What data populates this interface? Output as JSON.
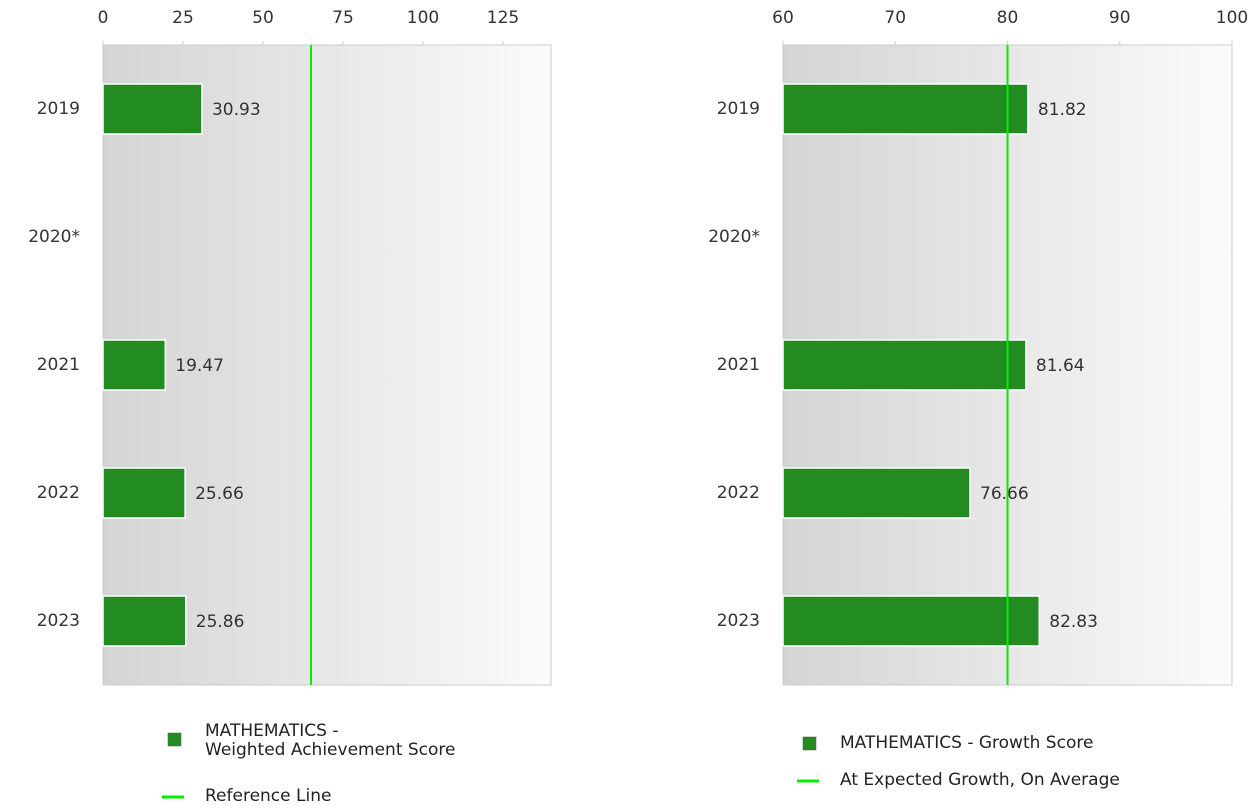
{
  "chart_data": [
    {
      "type": "bar",
      "orientation": "horizontal",
      "categories": [
        "2019",
        "2020*",
        "2021",
        "2022",
        "2023"
      ],
      "series": [
        {
          "name": "MATHEMATICS -\nWeighted Achievement Score",
          "color": "#228b22",
          "values": [
            30.93,
            null,
            19.47,
            25.66,
            25.86
          ]
        }
      ],
      "reference": {
        "name": "Reference Line",
        "color": "#00ee00",
        "value": 65
      },
      "xlim": [
        0,
        140
      ],
      "xticks": [
        0,
        25,
        50,
        75,
        100,
        125
      ]
    },
    {
      "type": "bar",
      "orientation": "horizontal",
      "categories": [
        "2019",
        "2020*",
        "2021",
        "2022",
        "2023"
      ],
      "series": [
        {
          "name": "MATHEMATICS - Growth Score",
          "color": "#228b22",
          "values": [
            81.82,
            null,
            81.64,
            76.66,
            82.83
          ]
        }
      ],
      "reference": {
        "name": "At Expected Growth, On Average",
        "color": "#00ee00",
        "value": 80
      },
      "xlim": [
        60,
        100
      ],
      "xticks": [
        60,
        70,
        80,
        90,
        100
      ]
    }
  ]
}
